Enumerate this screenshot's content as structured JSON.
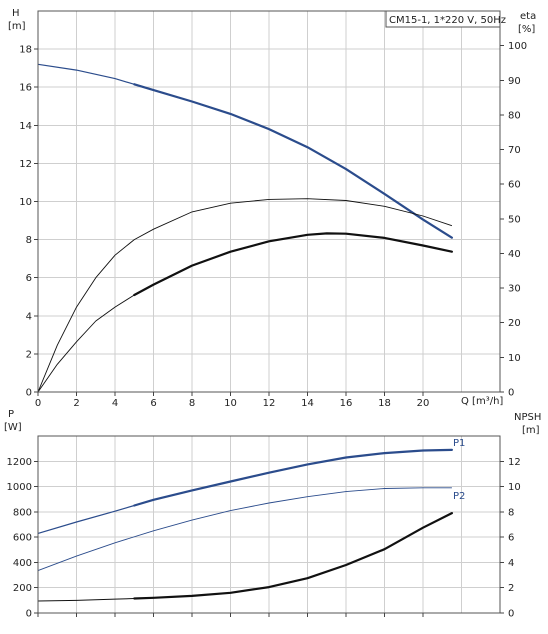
{
  "chart_data": [
    {
      "type": "line",
      "panel": "performance",
      "legend_text": "CM15-1, 1*220 V, 50Hz",
      "left_axis_label": [
        "H",
        "[m]"
      ],
      "right_axis_label": [
        "eta",
        "[%]"
      ],
      "x_axis_label": "Q [m³/h]",
      "xlim": [
        0,
        24
      ],
      "ylim_left": [
        0,
        20
      ],
      "ylim_right": [
        0,
        110
      ],
      "x_ticks": [
        0,
        2,
        4,
        6,
        8,
        10,
        12,
        14,
        16,
        18,
        20
      ],
      "y_ticks_left": [
        0,
        2,
        4,
        6,
        8,
        10,
        12,
        14,
        16,
        18
      ],
      "y_ticks_right": [
        0,
        10,
        20,
        30,
        40,
        50,
        60,
        70,
        80,
        90,
        100
      ],
      "grid": true,
      "series": [
        {
          "key": "H",
          "axis": "left",
          "color": "#2b4c8c",
          "width_thin": 1.2,
          "width_thick": 2.2,
          "thick_from": 5,
          "x": [
            0,
            2,
            4,
            5,
            6,
            8,
            10,
            12,
            14,
            16,
            18,
            20,
            21.5
          ],
          "y": [
            17.2,
            16.9,
            16.45,
            16.15,
            15.85,
            15.25,
            14.6,
            13.8,
            12.85,
            11.7,
            10.4,
            9.05,
            8.1
          ]
        },
        {
          "key": "eta_total",
          "axis": "right",
          "color": "#111111",
          "width_thin": 0.9,
          "width_thick": 0.9,
          "thick_from": 99,
          "x": [
            0,
            1,
            2,
            3,
            4,
            5,
            6,
            8,
            10,
            12,
            14,
            16,
            18,
            20,
            21.5
          ],
          "y": [
            0,
            13.5,
            24.5,
            33,
            39.5,
            44,
            47,
            52,
            54.5,
            55.6,
            55.8,
            55.3,
            53.6,
            50.8,
            48
          ]
        },
        {
          "key": "eta_hydr",
          "axis": "right",
          "color": "#111111",
          "width_thin": 0.9,
          "width_thick": 2.2,
          "thick_from": 5,
          "x": [
            0,
            1,
            2,
            3,
            4,
            5,
            6,
            8,
            10,
            12,
            14,
            15,
            16,
            18,
            20,
            21.5
          ],
          "y": [
            0,
            8,
            14.5,
            20.5,
            24.5,
            28,
            31,
            36.5,
            40.5,
            43.5,
            45.4,
            45.8,
            45.7,
            44.5,
            42.3,
            40.5
          ]
        }
      ]
    },
    {
      "type": "line",
      "panel": "power_npsh",
      "left_axis_label": [
        "P",
        "[W]"
      ],
      "right_axis_label": [
        "NPSH",
        "[m]"
      ],
      "xlim": [
        0,
        24
      ],
      "ylim_left": [
        0,
        1400
      ],
      "ylim_right": [
        0,
        14
      ],
      "y_ticks_left": [
        0,
        200,
        400,
        600,
        800,
        1000,
        1200
      ],
      "y_ticks_right": [
        0,
        2,
        4,
        6,
        8,
        10,
        12
      ],
      "grid": true,
      "series": [
        {
          "name": "P1",
          "axis": "left",
          "color": "#2b4c8c",
          "width_thin": 1.2,
          "width_thick": 2.2,
          "thick_from": 5,
          "x": [
            0,
            2,
            4,
            5,
            6,
            8,
            10,
            12,
            14,
            16,
            18,
            20,
            21.5
          ],
          "y": [
            630,
            720,
            805,
            850,
            895,
            970,
            1040,
            1110,
            1175,
            1230,
            1265,
            1285,
            1290
          ]
        },
        {
          "name": "P2",
          "axis": "left",
          "color": "#2b4c8c",
          "width_thin": 0.9,
          "width_thick": 0.9,
          "thick_from": 99,
          "x": [
            0,
            2,
            4,
            6,
            8,
            10,
            12,
            14,
            16,
            18,
            20,
            21.5
          ],
          "y": [
            335,
            450,
            555,
            650,
            735,
            810,
            870,
            920,
            960,
            985,
            990,
            990
          ]
        },
        {
          "key": "NPSH",
          "axis": "right",
          "color": "#111111",
          "width_thin": 1.0,
          "width_thick": 2.2,
          "thick_from": 5,
          "x": [
            0,
            2,
            4,
            5,
            6,
            8,
            10,
            12,
            14,
            16,
            18,
            20,
            21.5
          ],
          "y": [
            0.95,
            1.0,
            1.1,
            1.15,
            1.2,
            1.35,
            1.6,
            2.05,
            2.75,
            3.8,
            5.05,
            6.75,
            7.9
          ]
        }
      ]
    }
  ]
}
